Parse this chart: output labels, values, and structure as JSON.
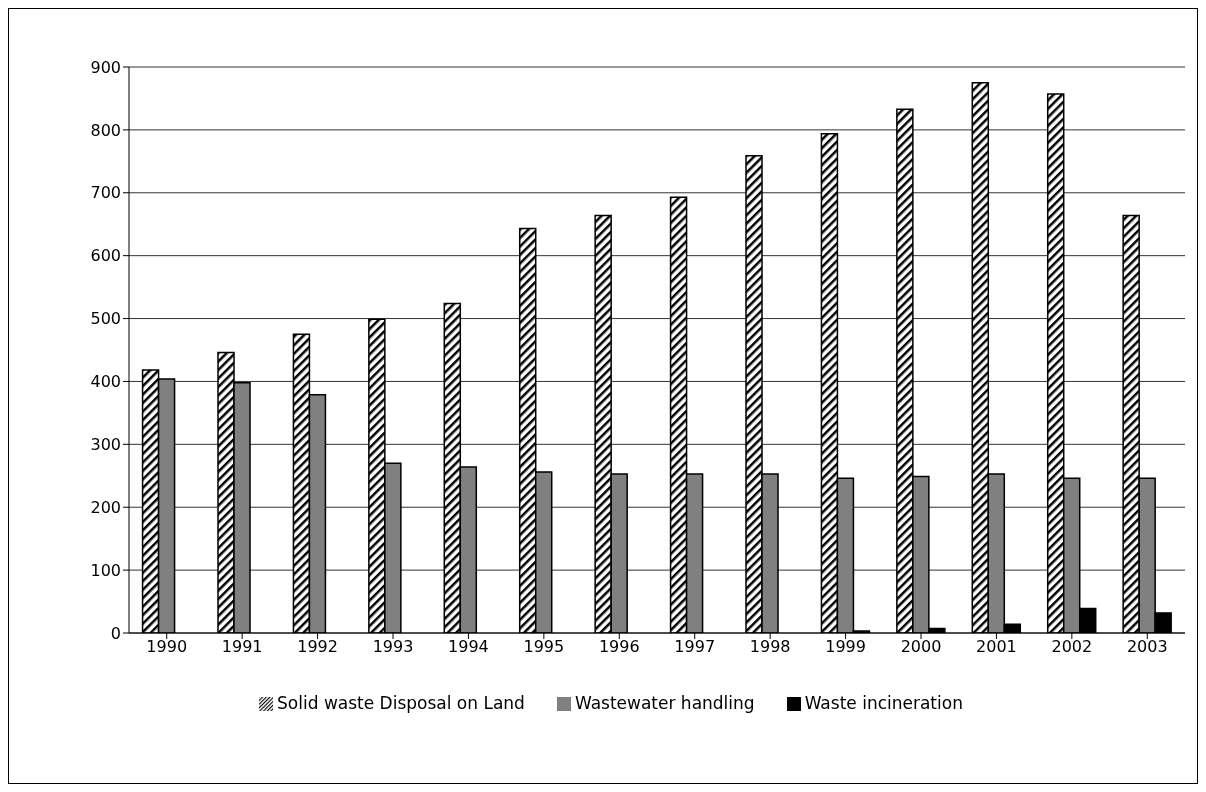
{
  "chart_data": {
    "type": "bar",
    "categories": [
      "1990",
      "1991",
      "1992",
      "1993",
      "1994",
      "1995",
      "1996",
      "1997",
      "1998",
      "1999",
      "2000",
      "2001",
      "2002",
      "2003"
    ],
    "series": [
      {
        "name": "Solid waste Disposal on Land",
        "color": "#000000",
        "values": [
          418,
          446,
          475,
          499,
          524,
          643,
          664,
          693,
          759,
          794,
          833,
          875,
          857,
          664
        ]
      },
      {
        "name": "Wastewater handling",
        "color": "#808080",
        "values": [
          404,
          398,
          379,
          270,
          264,
          256,
          253,
          253,
          253,
          246,
          249,
          253,
          246,
          246
        ]
      },
      {
        "name": "Waste incineration",
        "color": "#000000",
        "values": [
          0,
          0,
          0,
          0,
          0,
          0,
          0,
          0,
          0,
          3,
          7,
          14,
          39,
          32
        ]
      }
    ],
    "ylim": [
      0,
      900
    ],
    "yticks": [
      0,
      100,
      200,
      300,
      400,
      500,
      600,
      700,
      800,
      900
    ],
    "grid": "y",
    "legend": "bottom"
  }
}
